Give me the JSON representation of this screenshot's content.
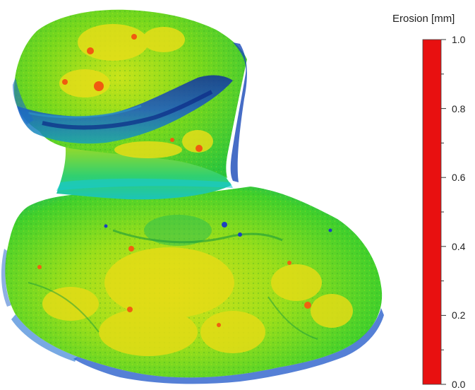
{
  "colorbar": {
    "title": "Erosion [mm]",
    "min": 0.0,
    "max": 1.0,
    "labeled_ticks": [
      "1.0",
      "0.8",
      "0.6",
      "0.4",
      "0.2",
      "0.0"
    ],
    "gradient_stops": [
      {
        "value": 1.0,
        "color": "#e81010"
      },
      {
        "value": 0.9,
        "color": "#f8a000"
      },
      {
        "value": 0.8,
        "color": "#e8f000"
      },
      {
        "value": 0.7,
        "color": "#80f000"
      },
      {
        "value": 0.6,
        "color": "#10d820"
      },
      {
        "value": 0.5,
        "color": "#10e8a0"
      },
      {
        "value": 0.4,
        "color": "#10e8f0"
      },
      {
        "value": 0.3,
        "color": "#0070f0"
      },
      {
        "value": 0.2,
        "color": "#1010d0"
      },
      {
        "value": 0.1,
        "color": "#400080"
      },
      {
        "value": 0.0,
        "color": "#000000"
      }
    ]
  },
  "surface_colors": {
    "dominant": "#7ce01c",
    "highlight": "#e8e018",
    "hot": "#f04010",
    "shadow": "#1040b0",
    "cyan": "#20d0c0"
  }
}
